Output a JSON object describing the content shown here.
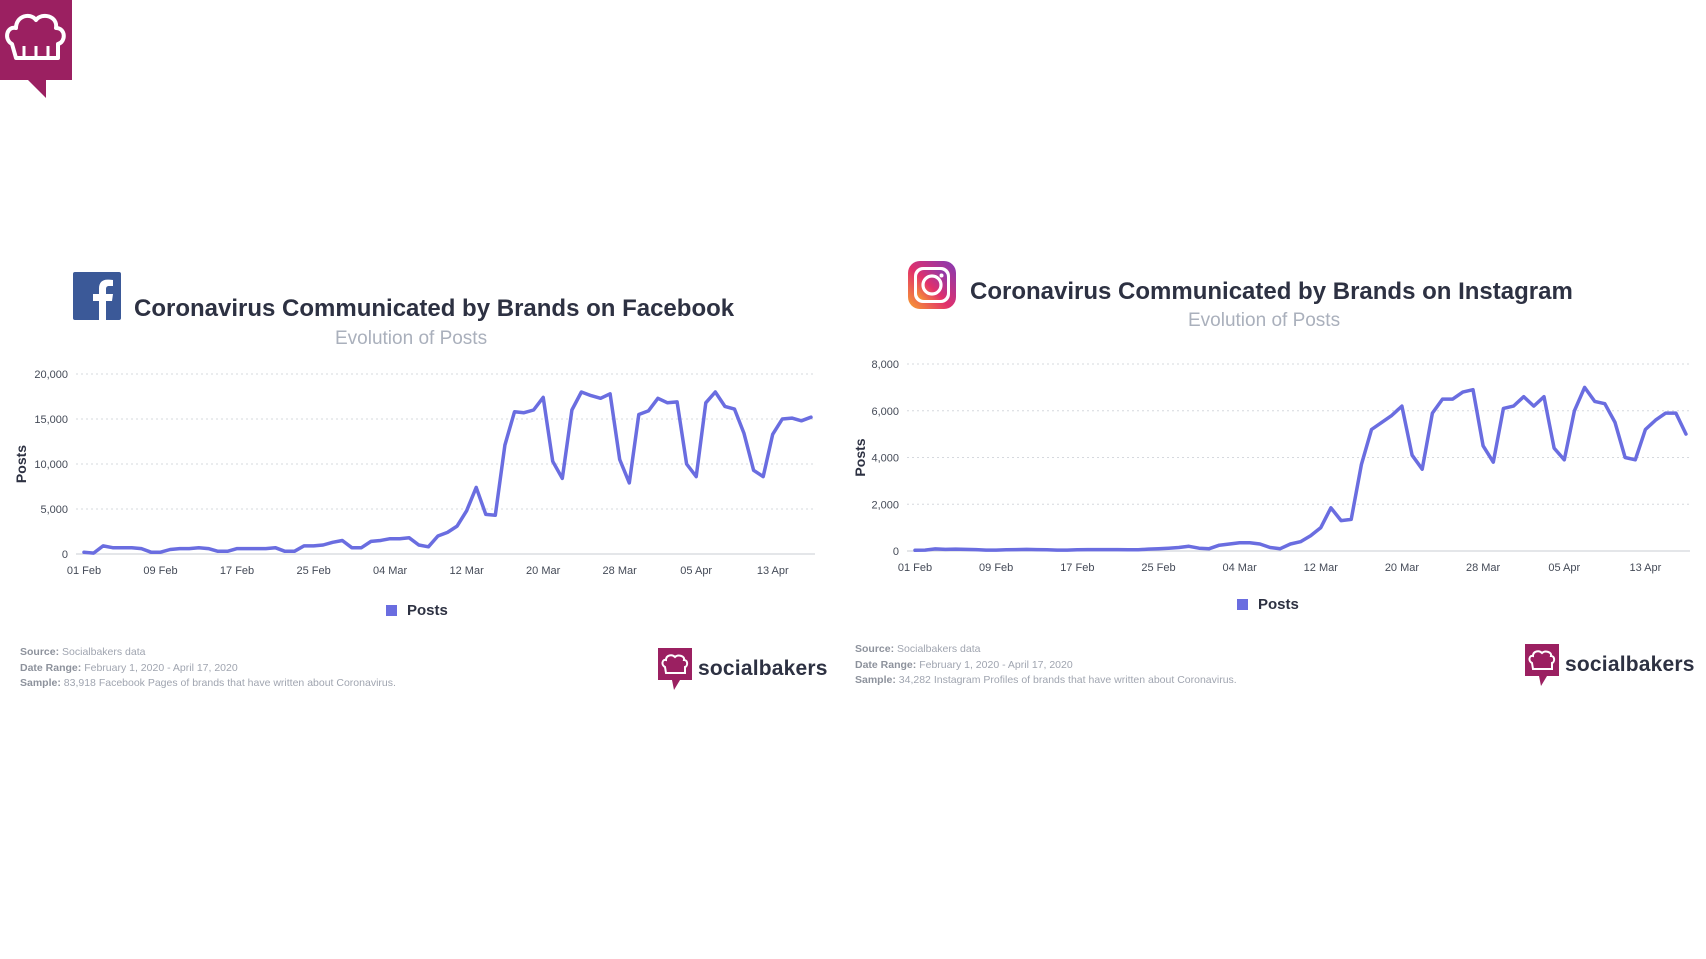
{
  "colors": {
    "line": "#6a6de0",
    "brand": "#9b2061",
    "grid": "#d5d8de",
    "facebook": "#3b5998"
  },
  "icons": {
    "corner": "chef-hat-speech-bubble-icon",
    "facebook": "facebook-icon",
    "instagram": "instagram-icon",
    "sb": "socialbakers-logo-icon"
  },
  "chart_data": [
    {
      "type": "line",
      "platform": "facebook",
      "title": "Coronavirus Communicated by Brands on Facebook",
      "subtitle": "Evolution of Posts",
      "xlabel": "",
      "ylabel": "Posts",
      "ylim": [
        0,
        20000
      ],
      "y_ticks": [
        0,
        5000,
        10000,
        15000,
        20000
      ],
      "y_tick_labels": [
        "0",
        "5,000",
        "10,000",
        "15,000",
        "20,000"
      ],
      "x_tick_labels": [
        "01 Feb",
        "09 Feb",
        "17 Feb",
        "25 Feb",
        "04 Mar",
        "12 Mar",
        "20 Mar",
        "28 Mar",
        "05 Apr",
        "13 Apr"
      ],
      "x_tick_indices": [
        0,
        8,
        16,
        24,
        32,
        40,
        48,
        56,
        64,
        72
      ],
      "grid": true,
      "legend": [
        "Posts"
      ],
      "legend_position": "bottom-center",
      "series": [
        {
          "name": "Posts",
          "values": [
            200,
            100,
            900,
            700,
            700,
            700,
            600,
            200,
            200,
            500,
            600,
            600,
            700,
            600,
            300,
            300,
            600,
            600,
            600,
            600,
            700,
            300,
            300,
            900,
            900,
            1000,
            1300,
            1500,
            700,
            700,
            1400,
            1500,
            1700,
            1700,
            1800,
            1000,
            800,
            2000,
            2400,
            3100,
            4800,
            7400,
            4400,
            4300,
            12100,
            15800,
            15700,
            16000,
            17400,
            10300,
            8400,
            16000,
            18000,
            17600,
            17300,
            17800,
            10500,
            7900,
            15500,
            15900,
            17300,
            16800,
            16900,
            10000,
            8600,
            16800,
            18000,
            16400,
            16100,
            13400,
            9300,
            8600,
            13300,
            15000,
            15100,
            14800,
            15200
          ]
        }
      ],
      "source_label": "Source:",
      "source": "Socialbakers data",
      "date_range_label": "Date Range:",
      "date_range": "February 1, 2020 - April 17, 2020",
      "sample_label": "Sample:",
      "sample": "83,918 Facebook Pages of brands that have written about Coronavirus."
    },
    {
      "type": "line",
      "platform": "instagram",
      "title": "Coronavirus Communicated by Brands on Instagram",
      "subtitle": "Evolution of Posts",
      "xlabel": "",
      "ylabel": "Posts",
      "ylim": [
        0,
        8000
      ],
      "y_ticks": [
        0,
        2000,
        4000,
        6000,
        8000
      ],
      "y_tick_labels": [
        "0",
        "2,000",
        "4,000",
        "6,000",
        "8,000"
      ],
      "x_tick_labels": [
        "01 Feb",
        "09 Feb",
        "17 Feb",
        "25 Feb",
        "04 Mar",
        "12 Mar",
        "20 Mar",
        "28 Mar",
        "05 Apr",
        "13 Apr"
      ],
      "x_tick_indices": [
        0,
        8,
        16,
        24,
        32,
        40,
        48,
        56,
        64,
        72
      ],
      "grid": true,
      "legend": [
        "Posts"
      ],
      "legend_position": "bottom-center",
      "series": [
        {
          "name": "Posts",
          "values": [
            30,
            40,
            90,
            70,
            80,
            70,
            60,
            40,
            40,
            50,
            60,
            70,
            60,
            50,
            40,
            40,
            50,
            60,
            60,
            60,
            60,
            50,
            50,
            80,
            100,
            120,
            150,
            200,
            120,
            100,
            250,
            300,
            350,
            350,
            300,
            150,
            100,
            300,
            400,
            650,
            1000,
            1850,
            1300,
            1350,
            3700,
            5200,
            5500,
            5800,
            6200,
            4100,
            3500,
            5900,
            6500,
            6500,
            6800,
            6900,
            4500,
            3800,
            6100,
            6200,
            6600,
            6200,
            6600,
            4400,
            3900,
            6000,
            7000,
            6400,
            6300,
            5500,
            4000,
            3900,
            5200,
            5600,
            5900,
            5900,
            5000
          ]
        }
      ],
      "source_label": "Source:",
      "source": "Socialbakers data",
      "date_range_label": "Date Range:",
      "date_range": "February 1, 2020 - April 17, 2020",
      "sample_label": "Sample:",
      "sample": "34,282 Instagram Profiles of brands that have written about Coronavirus."
    }
  ],
  "brand": {
    "name": "socialbakers"
  }
}
